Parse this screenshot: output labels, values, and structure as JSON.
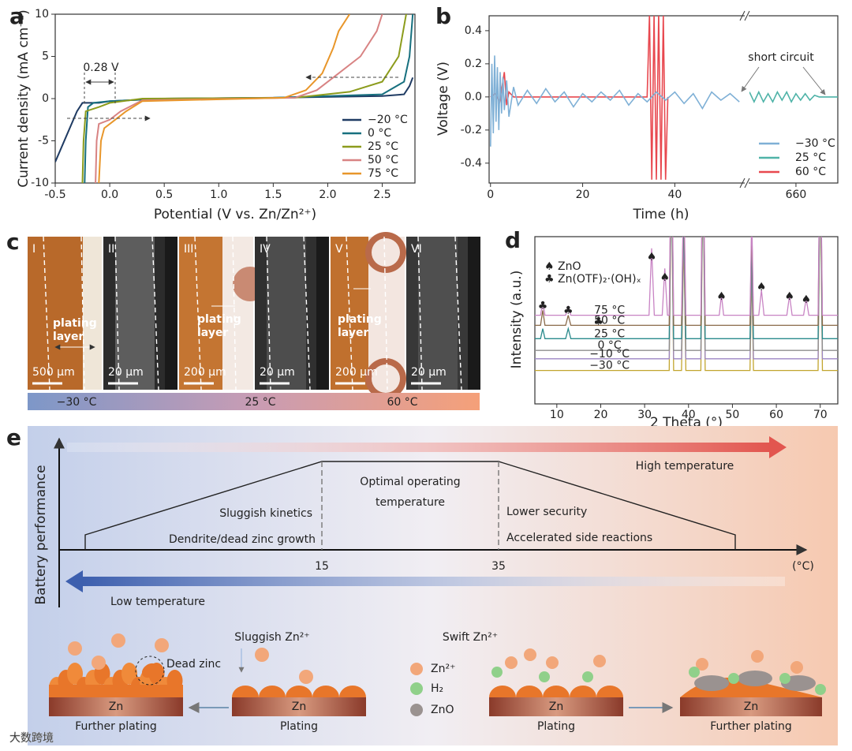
{
  "panel_labels": [
    "a",
    "b",
    "c",
    "d",
    "e"
  ],
  "chart_data": [
    {
      "type": "line",
      "xlabel": "Potential (V vs. Zn/Zn²⁺)",
      "ylabel": "Current density (mA cm⁻²)",
      "annotation": "0.28 V",
      "legend": "lower right",
      "xlim": [
        -0.5,
        2.8
      ],
      "ylim": [
        -10,
        10
      ],
      "xticks": [
        -0.5,
        {
          "value": 0,
          "label": "0.0"
        },
        0.5,
        {
          "value": 1,
          "label": "1.0"
        },
        1.5,
        {
          "value": 2,
          "label": "2.0"
        },
        2.5
      ],
      "yticks": [
        -10,
        -5,
        0,
        5,
        10
      ],
      "series": [
        {
          "name": "−20 °C",
          "color": "#1f3b63",
          "x": [
            -0.5,
            -0.4,
            -0.3,
            -0.25,
            -0.1,
            0,
            0.5,
            1.5,
            2.5,
            2.7,
            2.75,
            2.78
          ],
          "values": [
            -7.5,
            -4.5,
            -1.5,
            -0.5,
            -0.5,
            -0.3,
            0,
            0.1,
            0.3,
            0.5,
            1.5,
            2.5
          ]
        },
        {
          "name": "0 °C",
          "color": "#17707f",
          "x": [
            -0.23,
            -0.22,
            -0.2,
            -0.15,
            0,
            0.5,
            1.5,
            2.5,
            2.7,
            2.75,
            2.78
          ],
          "values": [
            -10,
            -5,
            -1,
            -0.5,
            -0.3,
            0,
            0.1,
            0.5,
            2,
            5,
            10
          ]
        },
        {
          "name": "25 °C",
          "color": "#8c9c1c",
          "x": [
            -0.25,
            -0.24,
            -0.22,
            -0.1,
            0,
            0.3,
            1.7,
            2.2,
            2.5,
            2.65,
            2.72
          ],
          "values": [
            -10,
            -5,
            -1.5,
            -1,
            -0.5,
            0,
            0.1,
            0.8,
            2,
            5,
            10
          ]
        },
        {
          "name": "50 °C",
          "color": "#d88383",
          "x": [
            -0.13,
            -0.12,
            -0.1,
            0,
            0.1,
            0.3,
            1.7,
            1.9,
            2.1,
            2.3,
            2.45,
            2.5
          ],
          "values": [
            -10,
            -5,
            -3,
            -2.5,
            -1.5,
            -0.2,
            0.1,
            1,
            3,
            5,
            8,
            10
          ]
        },
        {
          "name": "75 °C",
          "color": "#e8962a",
          "x": [
            -0.1,
            -0.08,
            -0.05,
            0.05,
            0.15,
            0.3,
            1.6,
            1.8,
            1.95,
            2.05,
            2.1,
            2.2
          ],
          "values": [
            -10,
            -5,
            -3.5,
            -2.5,
            -1.5,
            -0.3,
            0.1,
            1,
            3,
            6,
            8,
            10
          ]
        }
      ]
    },
    {
      "type": "line",
      "xlabel": "Time (h)",
      "ylabel": "Voltage (V)",
      "annotation": "short circuit",
      "legend": "lower right",
      "xlim": [
        [
          -0.3,
          55
        ],
        [
          650,
          669
        ]
      ],
      "ylim": [
        -0.52,
        0.49
      ],
      "xticks": [
        0,
        20,
        40,
        660
      ],
      "yticks": [
        -0.4,
        -0.2,
        {
          "value": 0,
          "label": "0.0"
        },
        0.2,
        0.4
      ],
      "series": [
        {
          "name": "60 °C",
          "color": "#e8484f",
          "x": [
            0,
            1,
            2,
            3,
            3.5,
            4,
            5,
            10,
            20,
            30,
            34,
            34.5,
            35,
            35.5,
            36,
            36.5,
            37,
            37.5,
            38,
            38.5
          ],
          "values": [
            0,
            0.02,
            -0.03,
            0.15,
            -0.05,
            0.03,
            0,
            0,
            0,
            0,
            0,
            0.5,
            -0.5,
            0.5,
            -0.5,
            0.5,
            -0.5,
            0.5,
            -0.5,
            0
          ]
        },
        {
          "name": "−30 °C",
          "color": "#7fb0d6",
          "x": [
            0,
            0.3,
            0.6,
            0.9,
            1.2,
            1.5,
            1.8,
            2.1,
            2.4,
            2.7,
            3,
            3.5,
            4,
            5,
            6,
            8,
            10,
            12,
            14,
            16,
            18,
            20,
            22,
            24,
            26,
            28,
            30,
            32,
            34,
            36,
            38,
            40,
            42,
            44,
            46,
            48,
            50,
            52,
            54
          ],
          "values": [
            -0.3,
            0.2,
            -0.22,
            0.25,
            -0.15,
            0.18,
            -0.2,
            0.15,
            -0.1,
            0.12,
            -0.08,
            0.1,
            -0.12,
            0.06,
            -0.05,
            0.04,
            -0.04,
            0.05,
            -0.03,
            0.03,
            -0.06,
            0.02,
            -0.03,
            0.03,
            -0.02,
            0.04,
            -0.05,
            0.02,
            -0.03,
            0.03,
            -0.02,
            0.03,
            -0.04,
            0.02,
            -0.07,
            0.03,
            -0.02,
            0.02,
            -0.03
          ]
        },
        {
          "name": "25 °C",
          "color": "#4fb3a8",
          "x": [
            650,
            651,
            652,
            653,
            654,
            655,
            656,
            657,
            658,
            659,
            660,
            661,
            662,
            663,
            664,
            665,
            666,
            667,
            668,
            669
          ],
          "values": [
            0.03,
            -0.03,
            0.03,
            -0.03,
            0.02,
            -0.03,
            0.03,
            -0.02,
            0.03,
            -0.03,
            0.02,
            -0.02,
            0.02,
            -0.02,
            0.01,
            0,
            0,
            0,
            0,
            0
          ]
        }
      ]
    },
    {
      "type": "line",
      "xlabel": "2 Theta (°)",
      "ylabel": "Intensity (a.u.)",
      "xlim": [
        5,
        74
      ],
      "ylim": [
        0,
        100
      ],
      "xticks": [
        10,
        20,
        30,
        40,
        50,
        60,
        70
      ],
      "legend_entries": [
        "♠ ZnO",
        "♣ Zn(OTF)₂·(OH)ₓ"
      ],
      "peak_markers": [
        "♣",
        "♣",
        "♣",
        "♠",
        "♠",
        "♠",
        "♠",
        "♠",
        "♠"
      ],
      "x": [
        5,
        6.3,
        6.8,
        7.3,
        12,
        12.6,
        13.2,
        31,
        31.6,
        32.2,
        34,
        34.6,
        35.2,
        35.6,
        36.1,
        36.6,
        38.4,
        38.9,
        39.4,
        42.8,
        43.3,
        43.8,
        47,
        47.5,
        48,
        54,
        54.4,
        54.8,
        56,
        56.6,
        57.2,
        62.4,
        63,
        63.6,
        66.2,
        66.8,
        67.4,
        69.5,
        70,
        70.5,
        74
      ],
      "series": [
        {
          "name": "−30 °C",
          "color": "#c2a52e",
          "values": [
            20,
            20,
            20,
            20,
            20,
            20,
            20,
            20,
            20,
            20,
            20,
            20,
            20,
            20,
            140,
            20,
            20,
            100,
            20,
            20,
            140,
            20,
            20,
            20,
            20,
            20,
            80,
            20,
            20,
            20,
            20,
            20,
            20,
            20,
            20,
            20,
            20,
            20,
            140,
            20,
            20
          ]
        },
        {
          "name": "−10 °C",
          "color": "#9c86c4",
          "values": [
            27,
            27,
            27,
            27,
            27,
            27,
            27,
            27,
            27,
            27,
            27,
            27,
            27,
            27,
            147,
            27,
            27,
            107,
            27,
            27,
            147,
            27,
            27,
            27,
            27,
            27,
            87,
            27,
            27,
            27,
            27,
            27,
            27,
            27,
            27,
            27,
            27,
            27,
            147,
            27,
            27
          ]
        },
        {
          "name": "0 °C",
          "color": "#8e8e8e",
          "values": [
            32,
            32,
            32,
            32,
            32,
            32,
            32,
            32,
            32,
            32,
            32,
            32,
            32,
            32,
            152,
            32,
            32,
            112,
            32,
            32,
            152,
            32,
            32,
            32,
            32,
            32,
            92,
            32,
            32,
            32,
            32,
            32,
            32,
            32,
            32,
            32,
            32,
            32,
            152,
            32,
            32
          ]
        },
        {
          "name": "25 °C",
          "color": "#2a8a8c",
          "values": [
            39,
            39,
            45,
            39,
            39,
            45,
            39,
            39,
            39,
            39,
            39,
            39,
            39,
            39,
            159,
            39,
            39,
            119,
            39,
            39,
            159,
            39,
            39,
            39,
            39,
            39,
            99,
            39,
            39,
            39,
            39,
            39,
            39,
            39,
            39,
            39,
            39,
            39,
            159,
            39,
            39
          ]
        },
        {
          "name": "50 °C",
          "color": "#8a6a4a",
          "values": [
            47,
            47,
            56,
            47,
            47,
            53,
            47,
            47,
            47,
            47,
            47,
            47,
            47,
            47,
            167,
            47,
            47,
            127,
            47,
            47,
            167,
            47,
            47,
            47,
            47,
            47,
            107,
            47,
            47,
            47,
            47,
            47,
            47,
            47,
            47,
            47,
            47,
            47,
            167,
            47,
            47
          ]
        },
        {
          "name": "75 °C",
          "color": "#c884c4",
          "values": [
            53,
            53,
            61,
            53,
            53,
            58,
            53,
            53,
            93,
            53,
            53,
            81,
            53,
            53,
            173,
            53,
            53,
            133,
            53,
            53,
            173,
            53,
            53,
            65,
            53,
            53,
            113,
            53,
            53,
            68,
            53,
            53,
            65,
            53,
            53,
            63,
            53,
            53,
            173,
            53,
            53
          ]
        }
      ]
    }
  ],
  "panel_c": {
    "images": [
      {
        "label": "I",
        "scale": "500 µm"
      },
      {
        "label": "II",
        "scale": "20 µm"
      },
      {
        "label": "III",
        "scale": "200 µm"
      },
      {
        "label": "IV",
        "scale": "20 µm"
      },
      {
        "label": "V",
        "scale": "200 µm"
      },
      {
        "label": "VI",
        "scale": "20 µm"
      }
    ],
    "plating_label": [
      "plating",
      "layer"
    ],
    "temperatures": [
      "−30 °C",
      "25 °C",
      "60 °C"
    ]
  },
  "panel_e": {
    "y_axis_label": "Battery performance",
    "high": "High temperature",
    "low": "Low temperature",
    "optimal": [
      "Optimal operating",
      "temperature"
    ],
    "low_effects": [
      "Sluggish kinetics",
      "Dendrite/dead zinc growth"
    ],
    "high_effects": [
      "Lower security",
      "Accelerated side reactions"
    ],
    "axis_ticks": [
      15,
      35
    ],
    "unit": "(°C)",
    "sluggish": "Sluggish Zn²⁺",
    "swift": "Swift Zn²⁺",
    "dead_zinc": "Dead zinc",
    "species": [
      "Zn²⁺",
      "H₂",
      "ZnO"
    ],
    "electrode": "Zn",
    "stages": [
      "Further plating",
      "Plating",
      "Plating",
      "Further plating"
    ]
  },
  "watermark": "大数跨境"
}
